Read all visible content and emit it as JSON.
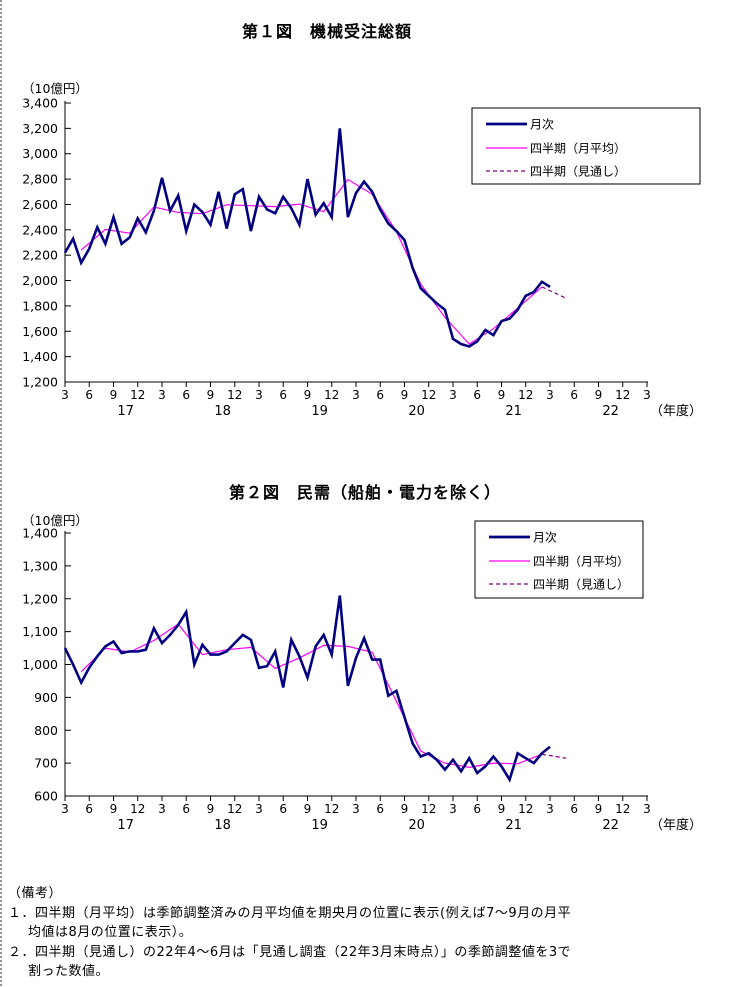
{
  "page": {
    "background": "#ffffff"
  },
  "chart_data": [
    {
      "id": "figure1",
      "type": "line",
      "title": "第１図　機械受注総額",
      "unit_label": "（10億円）",
      "ylim": [
        1200,
        3400
      ],
      "y_tick_step": 200,
      "y_tick_labels": [
        "3,400",
        "3,200",
        "3,000",
        "2,800",
        "2,600",
        "2,400",
        "2,200",
        "2,000",
        "1,800",
        "1,600",
        "1,400",
        "1,200"
      ],
      "x_tick_labels": [
        "3",
        "6",
        "9",
        "12",
        "3",
        "6",
        "9",
        "12",
        "3",
        "6",
        "9",
        "12",
        "3",
        "6",
        "9",
        "12",
        "3",
        "6",
        "9",
        "12",
        "3",
        "6",
        "9",
        "12",
        "3"
      ],
      "fiscal_year_labels": [
        "17",
        "18",
        "19",
        "20",
        "21",
        "22"
      ],
      "x_axis_suffix": "（年度）",
      "grid": "off",
      "legend_position": "top-right-inside",
      "legend": [
        {
          "label": "月次",
          "color": "#000080",
          "style": "solid-thick"
        },
        {
          "label": "四半期（月平均）",
          "color": "#ff00ff",
          "style": "solid-thin"
        },
        {
          "label": "四半期（見通し）",
          "color": "#800080",
          "style": "dashed"
        }
      ],
      "series": [
        {
          "name": "月次",
          "values": [
            2220,
            2330,
            2140,
            2250,
            2420,
            2290,
            2500,
            2290,
            2340,
            2490,
            2380,
            2550,
            2810,
            2550,
            2670,
            2390,
            2600,
            2540,
            2440,
            2700,
            2410,
            2680,
            2720,
            2390,
            2660,
            2560,
            2530,
            2660,
            2570,
            2440,
            2800,
            2520,
            2610,
            2500,
            3200,
            2500,
            2690,
            2780,
            2700,
            2560,
            2450,
            2390,
            2320,
            2100,
            1940,
            1880,
            1820,
            1770,
            1540,
            1500,
            1480,
            1520,
            1610,
            1570,
            1680,
            1700,
            1770,
            1880,
            1910,
            1990,
            1950
          ]
        },
        {
          "name": "四半期（月平均）",
          "position": "mid-quarter",
          "values": [
            2240,
            2403,
            2373,
            2580,
            2537,
            2527,
            2597,
            2590,
            2583,
            2603,
            2543,
            2797,
            2680,
            2387,
            1973,
            1710,
            1500,
            1620,
            1783,
            1950
          ]
        },
        {
          "name": "四半期（見通し）",
          "position": "mid-quarter-forecast",
          "values": [
            1860
          ]
        }
      ]
    },
    {
      "id": "figure2",
      "type": "line",
      "title": "第２図　民需（船舶・電力を除く）",
      "unit_label": "（10億円）",
      "ylim": [
        600,
        1400
      ],
      "y_tick_step": 100,
      "y_tick_labels": [
        "1,400",
        "1,300",
        "1,200",
        "1,100",
        "1,000",
        "900",
        "800",
        "700",
        "600"
      ],
      "x_tick_labels": [
        "3",
        "6",
        "9",
        "12",
        "3",
        "6",
        "9",
        "12",
        "3",
        "6",
        "9",
        "12",
        "3",
        "6",
        "9",
        "12",
        "3",
        "6",
        "9",
        "12",
        "3",
        "6",
        "9",
        "12",
        "3"
      ],
      "fiscal_year_labels": [
        "17",
        "18",
        "19",
        "20",
        "21",
        "22"
      ],
      "x_axis_suffix": "（年度）",
      "grid": "off",
      "legend_position": "top-right-inside",
      "legend": [
        {
          "label": "月次",
          "color": "#000080",
          "style": "solid-thick"
        },
        {
          "label": "四半期（月平均）",
          "color": "#ff00ff",
          "style": "solid-thin"
        },
        {
          "label": "四半期（見通し）",
          "color": "#800080",
          "style": "dashed"
        }
      ],
      "series": [
        {
          "name": "月次",
          "values": [
            1050,
            1000,
            945,
            990,
            1025,
            1055,
            1070,
            1035,
            1040,
            1040,
            1045,
            1110,
            1065,
            1090,
            1120,
            1160,
            1000,
            1060,
            1030,
            1030,
            1040,
            1065,
            1090,
            1075,
            990,
            995,
            1040,
            930,
            1075,
            1025,
            960,
            1055,
            1090,
            1030,
            1210,
            935,
            1020,
            1080,
            1015,
            1015,
            905,
            920,
            840,
            760,
            720,
            730,
            710,
            680,
            710,
            675,
            715,
            670,
            690,
            720,
            690,
            650,
            730,
            715,
            700,
            730,
            750
          ]
        },
        {
          "name": "四半期（月平均）",
          "position": "mid-quarter",
          "values": [
            978,
            1050,
            1038,
            1073,
            1123,
            1030,
            1045,
            1052,
            988,
            1020,
            1058,
            1055,
            1037,
            888,
            737,
            700,
            687,
            700,
            698,
            727
          ]
        },
        {
          "name": "四半期（見通し）",
          "position": "mid-quarter-forecast",
          "values": [
            715
          ]
        }
      ]
    }
  ],
  "notes": {
    "heading": "（備考）",
    "lines": [
      "１．四半期（月平均）は季節調整済みの月平均値を期央月の位置に表示(例えば7～9月の月平",
      "均値は8月の位置に表示）。",
      "２．四半期（見通し）の22年4～6月は「見通し調査（22年3月末時点）」の季節調整値を3で",
      "割った数値。"
    ]
  }
}
